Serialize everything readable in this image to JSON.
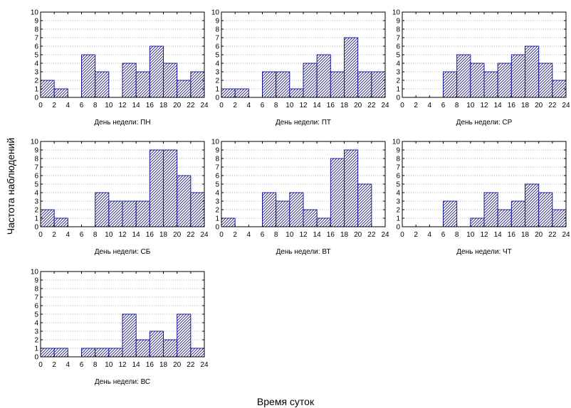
{
  "figure": {
    "ylabel": "Частота наблюдений",
    "xlabel": "Время суток",
    "bar_color": "#1a1aa0"
  },
  "chart_data": [
    {
      "type": "bar",
      "title": "День недели: ПН",
      "bin_width": 2,
      "x_ticks": [
        0,
        2,
        4,
        6,
        8,
        10,
        12,
        14,
        16,
        18,
        20,
        22,
        24
      ],
      "y_ticks": [
        0,
        1,
        2,
        3,
        4,
        5,
        6,
        7,
        8,
        9,
        10
      ],
      "ylim": [
        0,
        10
      ],
      "xlim": [
        0,
        24
      ],
      "grid": true,
      "values": [
        2,
        1,
        0,
        5,
        3,
        0,
        4,
        3,
        6,
        4,
        2,
        3
      ]
    },
    {
      "type": "bar",
      "title": "День недели: ПТ",
      "bin_width": 2,
      "x_ticks": [
        0,
        2,
        4,
        6,
        8,
        10,
        12,
        14,
        16,
        18,
        20,
        22,
        24
      ],
      "y_ticks": [
        0,
        1,
        2,
        3,
        4,
        5,
        6,
        7,
        8,
        9,
        10
      ],
      "ylim": [
        0,
        10
      ],
      "xlim": [
        0,
        24
      ],
      "grid": true,
      "values": [
        1,
        1,
        0,
        3,
        3,
        1,
        4,
        5,
        3,
        7,
        3,
        3
      ]
    },
    {
      "type": "bar",
      "title": "День недели: СР",
      "bin_width": 2,
      "x_ticks": [
        0,
        2,
        4,
        6,
        8,
        10,
        12,
        14,
        16,
        18,
        20,
        22,
        24
      ],
      "y_ticks": [
        0,
        1,
        2,
        3,
        4,
        5,
        6,
        7,
        8,
        9,
        10
      ],
      "ylim": [
        0,
        10
      ],
      "xlim": [
        0,
        24
      ],
      "grid": true,
      "values": [
        0,
        0,
        0,
        3,
        5,
        4,
        3,
        4,
        5,
        6,
        4,
        2
      ]
    },
    {
      "type": "bar",
      "title": "День недели: СБ",
      "bin_width": 2,
      "x_ticks": [
        0,
        2,
        4,
        6,
        8,
        10,
        12,
        14,
        16,
        18,
        20,
        22,
        24
      ],
      "y_ticks": [
        0,
        1,
        2,
        3,
        4,
        5,
        6,
        7,
        8,
        9,
        10
      ],
      "ylim": [
        0,
        10
      ],
      "xlim": [
        0,
        24
      ],
      "grid": true,
      "values": [
        2,
        1,
        0,
        0,
        4,
        3,
        3,
        3,
        9,
        9,
        6,
        4
      ]
    },
    {
      "type": "bar",
      "title": "День недели: ВТ",
      "bin_width": 2,
      "x_ticks": [
        0,
        2,
        4,
        6,
        8,
        10,
        12,
        14,
        16,
        18,
        20,
        22,
        24
      ],
      "y_ticks": [
        0,
        1,
        2,
        3,
        4,
        5,
        6,
        7,
        8,
        9,
        10
      ],
      "ylim": [
        0,
        10
      ],
      "xlim": [
        0,
        24
      ],
      "grid": true,
      "values": [
        1,
        0,
        0,
        4,
        3,
        4,
        2,
        1,
        8,
        9,
        5,
        0
      ]
    },
    {
      "type": "bar",
      "title": "День недели: ЧТ",
      "bin_width": 2,
      "x_ticks": [
        0,
        2,
        4,
        6,
        8,
        10,
        12,
        14,
        16,
        18,
        20,
        22,
        24
      ],
      "y_ticks": [
        0,
        1,
        2,
        3,
        4,
        5,
        6,
        7,
        8,
        9,
        10
      ],
      "ylim": [
        0,
        10
      ],
      "xlim": [
        0,
        24
      ],
      "grid": true,
      "values": [
        0,
        0,
        0,
        3,
        0,
        1,
        4,
        2,
        3,
        5,
        4,
        2
      ]
    },
    {
      "type": "bar",
      "title": "День недели: ВС",
      "bin_width": 2,
      "x_ticks": [
        0,
        2,
        4,
        6,
        8,
        10,
        12,
        14,
        16,
        18,
        20,
        22,
        24
      ],
      "y_ticks": [
        0,
        1,
        2,
        3,
        4,
        5,
        6,
        7,
        8,
        9,
        10
      ],
      "ylim": [
        0,
        10
      ],
      "xlim": [
        0,
        24
      ],
      "grid": true,
      "values": [
        1,
        1,
        0,
        1,
        1,
        1,
        5,
        2,
        3,
        2,
        5,
        1
      ]
    }
  ]
}
